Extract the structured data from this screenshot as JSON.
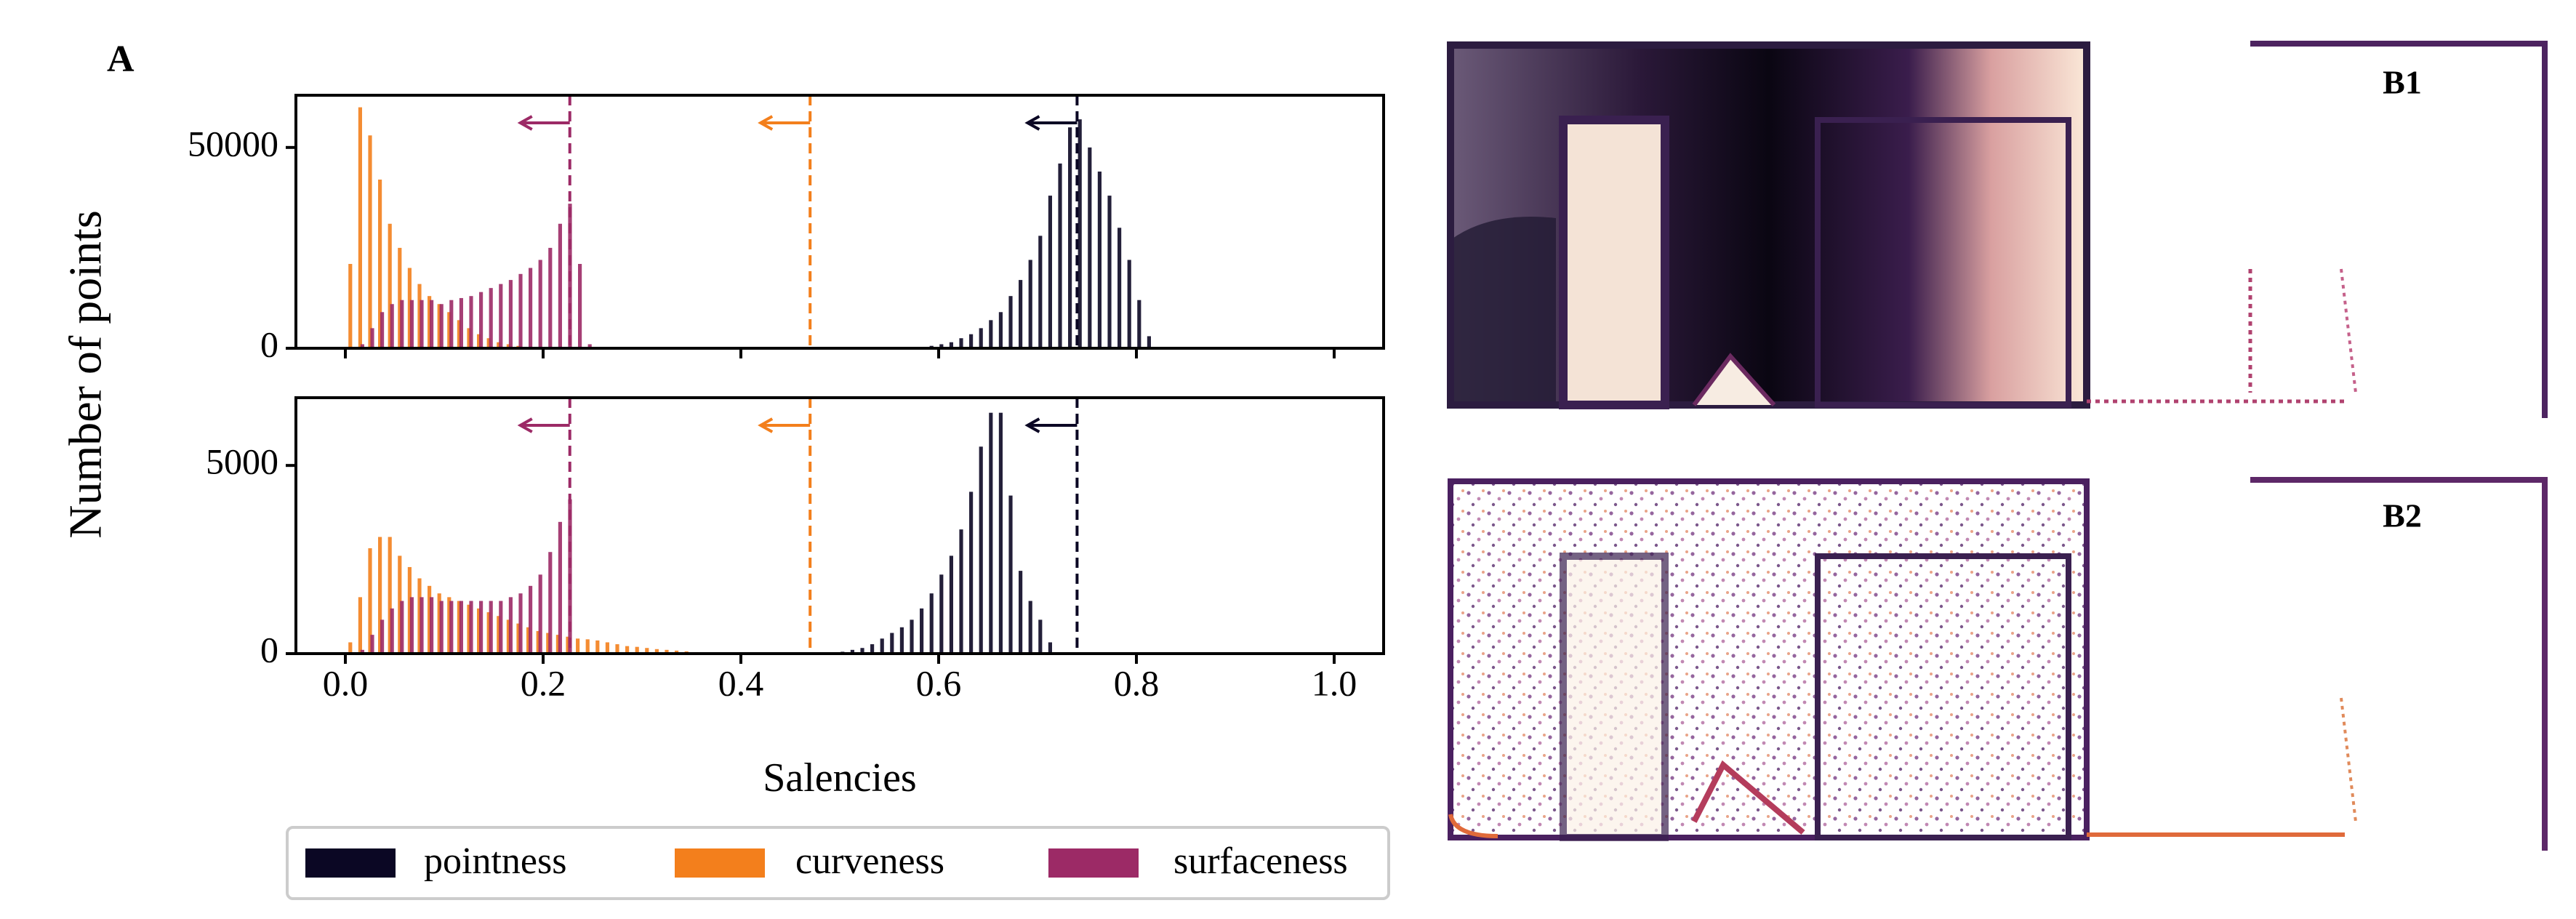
{
  "chart_data": [
    {
      "type": "histogram",
      "xlim": [
        -0.05,
        1.05
      ],
      "xticks": [
        0,
        0.2,
        0.4,
        0.6,
        0.8,
        1
      ],
      "xtick_labels": false,
      "ylim": [
        0,
        63000
      ],
      "yticks": [
        0,
        50000
      ],
      "series": [
        {
          "name": "pointness",
          "color": "#0b0724",
          "bins": [
            0.58,
            0.59,
            0.6,
            0.61,
            0.62,
            0.63,
            0.64,
            0.65,
            0.66,
            0.67,
            0.68,
            0.69,
            0.7,
            0.71,
            0.72,
            0.73,
            0.74,
            0.75,
            0.76,
            0.77,
            0.78,
            0.79,
            0.8,
            0.81,
            0.82
          ],
          "values": [
            300,
            600,
            1000,
            1500,
            2500,
            3500,
            5000,
            7000,
            9000,
            13000,
            17000,
            22000,
            28000,
            38000,
            46000,
            55000,
            57000,
            50000,
            44000,
            38000,
            30000,
            22000,
            12000,
            3000
          ]
        },
        {
          "name": "curveness",
          "color": "#f37f1c",
          "bins": [
            0,
            0.01,
            0.02,
            0.03,
            0.04,
            0.05,
            0.06,
            0.07,
            0.08,
            0.09,
            0.1,
            0.11,
            0.12,
            0.13,
            0.14,
            0.15,
            0.16,
            0.17,
            0.18,
            0.19
          ],
          "values": [
            21000,
            60000,
            53000,
            42000,
            31000,
            25000,
            20000,
            16000,
            13000,
            11000,
            9000,
            7000,
            5000,
            3500,
            2500,
            1500,
            1000,
            600,
            300
          ]
        },
        {
          "name": "surfaceness",
          "color": "#9c2a66",
          "bins": [
            0.01,
            0.02,
            0.03,
            0.04,
            0.05,
            0.06,
            0.07,
            0.08,
            0.09,
            0.1,
            0.11,
            0.12,
            0.13,
            0.14,
            0.15,
            0.16,
            0.17,
            0.18,
            0.19,
            0.2,
            0.21,
            0.22,
            0.23,
            0.24,
            0.25
          ],
          "values": [
            1000,
            5000,
            9000,
            11000,
            12000,
            12000,
            12000,
            12000,
            11000,
            12000,
            12500,
            13000,
            14000,
            15000,
            16000,
            17000,
            18500,
            20000,
            22000,
            25000,
            31000,
            36000,
            21000,
            1000
          ]
        }
      ],
      "thresholds": [
        {
          "value": 0.74,
          "color": "#0b0724"
        },
        {
          "value": 0.47,
          "color": "#f37f1c"
        },
        {
          "value": 0.227,
          "color": "#9c2a66"
        }
      ]
    },
    {
      "type": "histogram",
      "xlabel": "Salencies",
      "xlim": [
        -0.05,
        1.05
      ],
      "xticks": [
        {
          "value": 0,
          "label": "0.0"
        },
        0.2,
        0.4,
        0.6,
        0.8,
        {
          "value": 1,
          "label": "1.0"
        }
      ],
      "ylim": [
        0,
        6800
      ],
      "yticks": [
        0,
        5000
      ],
      "series": [
        {
          "name": "pointness",
          "color": "#0b0724",
          "bins": [
            0.5,
            0.51,
            0.52,
            0.53,
            0.54,
            0.55,
            0.56,
            0.57,
            0.58,
            0.59,
            0.6,
            0.61,
            0.62,
            0.63,
            0.64,
            0.65,
            0.66,
            0.67,
            0.68,
            0.69,
            0.7,
            0.71,
            0.72
          ],
          "values": [
            50,
            100,
            150,
            250,
            400,
            550,
            700,
            900,
            1200,
            1600,
            2100,
            2600,
            3300,
            4300,
            5500,
            6400,
            6400,
            4200,
            2200,
            1400,
            900,
            300
          ]
        },
        {
          "name": "curveness",
          "color": "#f37f1c",
          "bins": [
            0,
            0.01,
            0.02,
            0.03,
            0.04,
            0.05,
            0.06,
            0.07,
            0.08,
            0.09,
            0.1,
            0.11,
            0.12,
            0.13,
            0.14,
            0.15,
            0.16,
            0.17,
            0.18,
            0.19,
            0.2,
            0.21,
            0.22,
            0.23,
            0.24,
            0.25,
            0.26,
            0.27,
            0.28,
            0.29,
            0.3,
            0.31,
            0.32,
            0.33,
            0.34,
            0.35,
            0.36
          ],
          "values": [
            300,
            1500,
            2800,
            3100,
            3100,
            2600,
            2300,
            2000,
            1800,
            1600,
            1500,
            1400,
            1300,
            1200,
            1100,
            1000,
            900,
            800,
            700,
            600,
            550,
            500,
            450,
            400,
            380,
            350,
            300,
            250,
            200,
            180,
            150,
            120,
            100,
            80,
            60,
            40
          ]
        },
        {
          "name": "surfaceness",
          "color": "#9c2a66",
          "bins": [
            0.01,
            0.02,
            0.03,
            0.04,
            0.05,
            0.06,
            0.07,
            0.08,
            0.09,
            0.1,
            0.11,
            0.12,
            0.13,
            0.14,
            0.15,
            0.16,
            0.17,
            0.18,
            0.19,
            0.2,
            0.21,
            0.22,
            0.23
          ],
          "values": [
            100,
            500,
            900,
            1200,
            1400,
            1500,
            1500,
            1500,
            1400,
            1400,
            1400,
            1400,
            1400,
            1400,
            1400,
            1500,
            1600,
            1800,
            2100,
            2700,
            3500,
            4100
          ]
        }
      ],
      "thresholds": [
        {
          "value": 0.74,
          "color": "#0b0724"
        },
        {
          "value": 0.47,
          "color": "#f37f1c"
        },
        {
          "value": 0.227,
          "color": "#9c2a66"
        }
      ]
    }
  ],
  "figure": {
    "panel_label": "A",
    "ylabel": "Number of points"
  },
  "images": [
    {
      "label": "B1"
    },
    {
      "label": "B2"
    }
  ]
}
